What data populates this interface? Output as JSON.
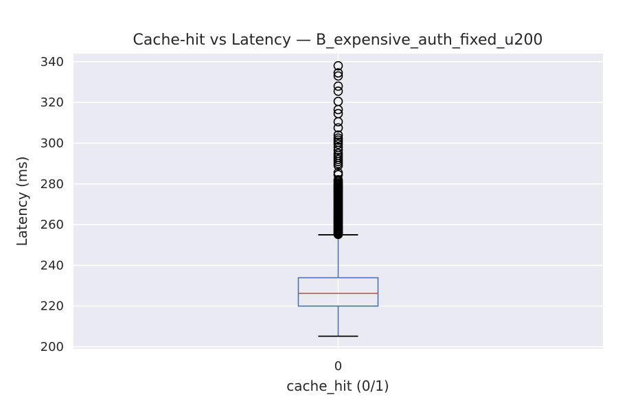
{
  "chart_data": {
    "type": "box",
    "title": "Cache-hit vs Latency — B_expensive_auth_fixed_u200",
    "xlabel": "cache_hit (0/1)",
    "ylabel": "Latency (ms)",
    "categories": [
      "0"
    ],
    "ylim": [
      199,
      344
    ],
    "yticks": [
      200,
      220,
      240,
      260,
      280,
      300,
      320,
      340
    ],
    "grid": true,
    "boxes": [
      {
        "category": "0",
        "whisker_low": 205.2,
        "q1": 220.0,
        "median": 226.2,
        "q3": 233.9,
        "whisker_high": 255.0,
        "outliers": [
          255.2,
          255.5,
          256.0,
          256.5,
          257.0,
          257.5,
          258.0,
          258.5,
          259.0,
          259.5,
          260.0,
          260.5,
          261.0,
          261.5,
          262.0,
          262.5,
          263.0,
          263.5,
          264.0,
          264.5,
          265.0,
          265.5,
          266.0,
          266.5,
          267.0,
          267.5,
          268.0,
          268.5,
          269.0,
          269.5,
          270.0,
          270.5,
          271.0,
          271.5,
          272.0,
          272.5,
          273.0,
          273.5,
          274.0,
          274.5,
          275.0,
          275.5,
          276.0,
          276.5,
          277.0,
          277.5,
          278.0,
          278.5,
          279.0,
          279.5,
          280.0,
          280.6,
          281.3,
          282.0,
          284.5,
          285.5,
          289.0,
          290.0,
          291.0,
          292.0,
          293.0,
          294.0,
          295.0,
          296.5,
          298.0,
          299.5,
          300.5,
          301.5,
          302.5,
          304.0,
          307.5,
          310.5,
          314.5,
          316.5,
          320.5,
          325.5,
          328.0,
          333.0,
          334.5,
          338.0
        ]
      }
    ],
    "colors": {
      "box": "#4c72b0",
      "median": "#c44e52",
      "whisker_cap": "#000000",
      "outlier_edge": "#000000",
      "plot_background": "#eaeaf2",
      "grid": "#ffffff"
    }
  }
}
